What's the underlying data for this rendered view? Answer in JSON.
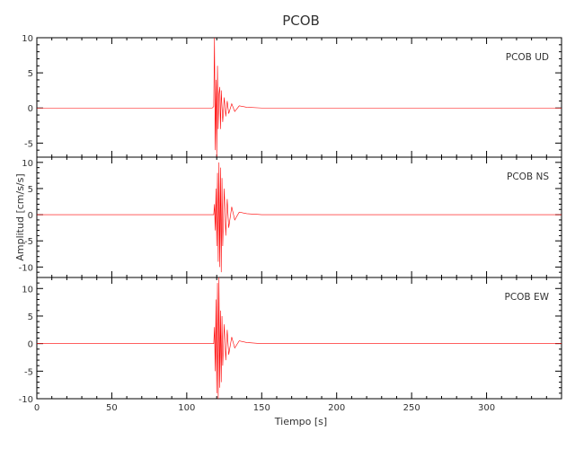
{
  "chart_data": {
    "type": "line",
    "title": "PCOB",
    "xlabel": "Tiempo [s]",
    "ylabel": "Amplitud [cm/s/s]",
    "xlim": [
      0,
      350
    ],
    "xticks": [
      0,
      50,
      100,
      150,
      200,
      250,
      300
    ],
    "grid": false,
    "line_color": "#ff0000",
    "panels": [
      {
        "label": "PCOB   UD",
        "ylim": [
          -7,
          10
        ],
        "yticks": [
          10,
          5,
          0,
          -5
        ],
        "series": {
          "x": [
            0,
            50,
            100,
            117,
            118,
            118.5,
            119,
            119.5,
            120,
            120.5,
            121,
            121.5,
            122,
            122.5,
            123,
            124,
            125,
            126,
            127,
            128,
            130,
            132,
            135,
            140,
            150,
            200,
            250,
            300,
            350
          ],
          "y": [
            0,
            0,
            0,
            0,
            0.2,
            10,
            -6,
            4,
            -7,
            6,
            -3,
            2,
            3,
            -3,
            2.5,
            -2,
            1.5,
            -1.2,
            1,
            -0.8,
            0.6,
            -0.5,
            0.3,
            0.1,
            0,
            0,
            0,
            0,
            0
          ]
        }
      },
      {
        "label": "PCOB   NS",
        "ylim": [
          -12,
          11
        ],
        "yticks": [
          10,
          5,
          0,
          -5,
          -10
        ],
        "series": {
          "x": [
            0,
            50,
            100,
            118,
            118.5,
            119,
            119.5,
            120,
            120.5,
            121,
            121.5,
            122,
            122.5,
            123,
            123.5,
            124,
            125,
            126,
            127,
            128,
            130,
            132,
            135,
            140,
            150,
            200,
            250,
            300,
            350
          ],
          "y": [
            0,
            0,
            0,
            0,
            2,
            -3,
            5,
            -6,
            8,
            -9,
            10,
            -10,
            9,
            -11,
            7,
            -6,
            5,
            -4,
            3,
            -2.5,
            1.5,
            -1,
            0.5,
            0.2,
            0,
            0,
            0,
            0,
            0
          ]
        }
      },
      {
        "label": "PCOB   EW",
        "ylim": [
          -10,
          12
        ],
        "yticks": [
          10,
          5,
          0,
          -5,
          -10
        ],
        "series": {
          "x": [
            0,
            50,
            100,
            118,
            118.5,
            119,
            119.5,
            120,
            120.5,
            121,
            121.5,
            122,
            122.5,
            123,
            123.5,
            124,
            125,
            126,
            127,
            128,
            130,
            132,
            135,
            140,
            150,
            200,
            250,
            300,
            350
          ],
          "y": [
            0,
            0,
            0,
            0,
            3,
            -5,
            8,
            -9,
            11,
            -10,
            12,
            -8,
            6,
            -7,
            5,
            -4,
            3.5,
            -3,
            2.5,
            -2,
            1.2,
            -0.8,
            0.5,
            0.2,
            0,
            0,
            0,
            0,
            0
          ]
        }
      }
    ]
  }
}
